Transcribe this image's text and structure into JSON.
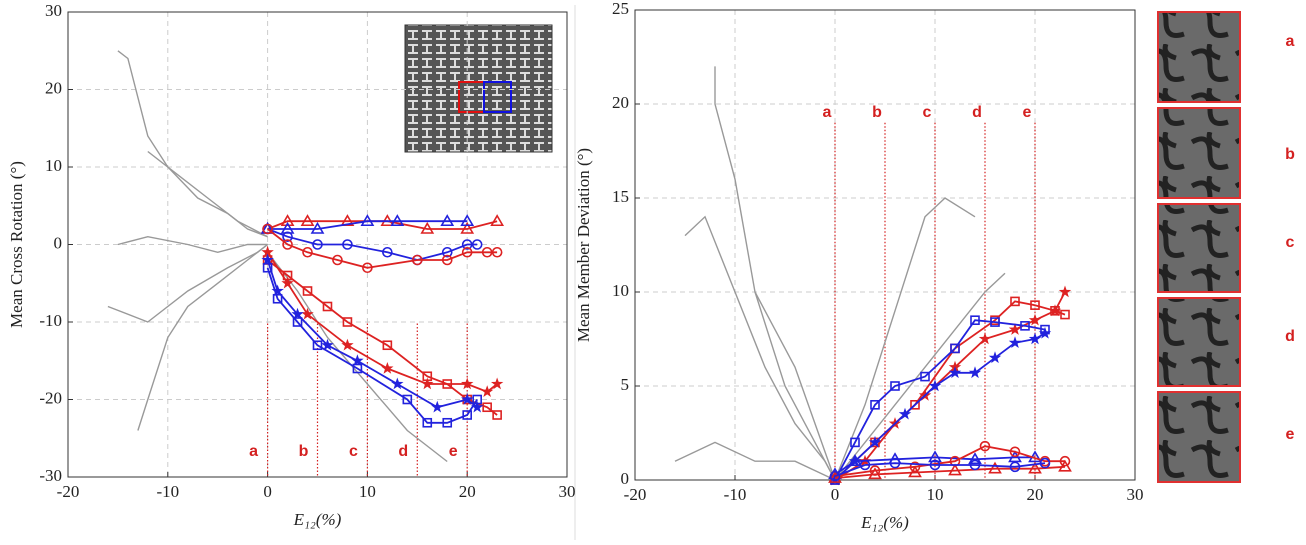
{
  "chart_data": [
    {
      "type": "line",
      "xlabel": "E₁₂(%)",
      "ylabel": "Mean Cross Rotation (°)",
      "xlim": [
        -20,
        30
      ],
      "ylim": [
        -30,
        30
      ],
      "xticks": [
        -20,
        -10,
        0,
        10,
        20,
        30
      ],
      "yticks": [
        -30,
        -20,
        -10,
        0,
        10,
        20,
        30
      ],
      "grid": true,
      "annotations": [
        {
          "label": "a",
          "x": 0
        },
        {
          "label": "b",
          "x": 5
        },
        {
          "label": "c",
          "x": 10
        },
        {
          "label": "d",
          "x": 15
        },
        {
          "label": "e",
          "x": 20
        }
      ],
      "series": [
        {
          "color": "#999999",
          "marker": "none",
          "x": [
            -15,
            -14,
            -12,
            -10,
            -7,
            -4,
            -2,
            0
          ],
          "values": [
            25,
            24,
            14,
            10,
            6,
            4,
            2,
            1
          ]
        },
        {
          "color": "#999999",
          "marker": "none",
          "x": [
            -13,
            -12,
            -10,
            -8,
            -5,
            -2,
            0
          ],
          "values": [
            -24,
            -20,
            -12,
            -8,
            -5,
            -2,
            0
          ]
        },
        {
          "color": "#999999",
          "marker": "none",
          "x": [
            -15,
            -12,
            -8,
            -5,
            -2,
            0
          ],
          "values": [
            0,
            1,
            0,
            -1,
            0,
            0
          ]
        },
        {
          "color": "#999999",
          "marker": "none",
          "x": [
            -16,
            -12,
            -8,
            -4,
            -1,
            0
          ],
          "values": [
            -8,
            -10,
            -6,
            -3,
            -1,
            0
          ]
        },
        {
          "color": "#999999",
          "marker": "none",
          "x": [
            0,
            3,
            6,
            10,
            14,
            18
          ],
          "values": [
            -1,
            -6,
            -12,
            -18,
            -24,
            -28
          ]
        },
        {
          "color": "#999999",
          "marker": "none",
          "x": [
            -12,
            -9,
            -6,
            -3,
            0
          ],
          "values": [
            12,
            9,
            6,
            3,
            1
          ]
        },
        {
          "color": "#dd2222",
          "marker": "triangle",
          "x": [
            0,
            2,
            4,
            8,
            12,
            16,
            20,
            23
          ],
          "values": [
            2,
            3,
            3,
            3,
            3,
            2,
            2,
            3
          ]
        },
        {
          "color": "#2222dd",
          "marker": "triangle",
          "x": [
            0,
            2,
            5,
            10,
            13,
            18,
            20
          ],
          "values": [
            2,
            2,
            2,
            3,
            3,
            3,
            3
          ]
        },
        {
          "color": "#2222dd",
          "marker": "circle",
          "x": [
            0,
            2,
            5,
            8,
            12,
            15,
            18,
            20,
            21
          ],
          "values": [
            2,
            1,
            0,
            0,
            -1,
            -2,
            -1,
            0,
            0
          ]
        },
        {
          "color": "#dd2222",
          "marker": "circle",
          "x": [
            0,
            2,
            4,
            7,
            10,
            15,
            18,
            20,
            22,
            23
          ],
          "values": [
            2,
            0,
            -1,
            -2,
            -3,
            -2,
            -2,
            -1,
            -1,
            -1
          ]
        },
        {
          "color": "#dd2222",
          "marker": "square",
          "x": [
            0,
            2,
            4,
            6,
            8,
            12,
            16,
            18,
            20,
            22,
            23
          ],
          "values": [
            -2,
            -4,
            -6,
            -8,
            -10,
            -13,
            -17,
            -18,
            -20,
            -21,
            -22
          ]
        },
        {
          "color": "#dd2222",
          "marker": "star",
          "x": [
            0,
            2,
            4,
            8,
            12,
            16,
            20,
            22,
            23
          ],
          "values": [
            -1,
            -5,
            -9,
            -13,
            -16,
            -18,
            -18,
            -19,
            -18
          ]
        },
        {
          "color": "#2222dd",
          "marker": "star",
          "x": [
            0,
            1,
            3,
            6,
            9,
            13,
            17,
            20,
            21
          ],
          "values": [
            -2,
            -6,
            -9,
            -13,
            -15,
            -18,
            -21,
            -20,
            -21
          ]
        },
        {
          "color": "#2222dd",
          "marker": "square",
          "x": [
            0,
            1,
            3,
            5,
            9,
            14,
            16,
            18,
            20,
            21
          ],
          "values": [
            -3,
            -7,
            -10,
            -13,
            -16,
            -20,
            -23,
            -23,
            -22,
            -20
          ]
        }
      ]
    },
    {
      "type": "line",
      "xlabel": "E₁₂(%)",
      "ylabel": "Mean Member Deviation (°)",
      "xlim": [
        -20,
        30
      ],
      "ylim": [
        0,
        25
      ],
      "xticks": [
        -20,
        -10,
        0,
        10,
        20,
        30
      ],
      "yticks": [
        0,
        5,
        10,
        15,
        20,
        25
      ],
      "grid": true,
      "annotations": [
        {
          "label": "a",
          "x": 0
        },
        {
          "label": "b",
          "x": 5
        },
        {
          "label": "c",
          "x": 10
        },
        {
          "label": "d",
          "x": 15
        },
        {
          "label": "e",
          "x": 20
        }
      ],
      "series": [
        {
          "color": "#999999",
          "marker": "none",
          "x": [
            -12,
            -12,
            -10,
            -8,
            -5,
            -2,
            0
          ],
          "values": [
            22,
            20,
            16,
            10,
            5,
            2,
            0
          ]
        },
        {
          "color": "#999999",
          "marker": "none",
          "x": [
            -15,
            -13,
            -10,
            -7,
            -4,
            -1,
            0
          ],
          "values": [
            13,
            14,
            10,
            6,
            3,
            1,
            0
          ]
        },
        {
          "color": "#999999",
          "marker": "none",
          "x": [
            0,
            3,
            6,
            9,
            11,
            14
          ],
          "values": [
            0,
            4,
            9,
            14,
            15,
            14
          ]
        },
        {
          "color": "#999999",
          "marker": "none",
          "x": [
            0,
            3,
            6,
            9,
            12,
            15,
            17
          ],
          "values": [
            0,
            2,
            4,
            6,
            8,
            10,
            11
          ]
        },
        {
          "color": "#999999",
          "marker": "none",
          "x": [
            -16,
            -12,
            -8,
            -4,
            0
          ],
          "values": [
            1,
            2,
            1,
            1,
            0
          ]
        },
        {
          "color": "#999999",
          "marker": "none",
          "x": [
            -8,
            -6,
            -4,
            -2,
            0
          ],
          "values": [
            10,
            8,
            6,
            3,
            0
          ]
        },
        {
          "color": "#dd2222",
          "marker": "star",
          "x": [
            0,
            3,
            6,
            9,
            12,
            15,
            18,
            20,
            22,
            23
          ],
          "values": [
            0,
            1,
            3,
            4.5,
            6,
            7.5,
            8,
            8.5,
            9,
            10
          ]
        },
        {
          "color": "#dd2222",
          "marker": "square",
          "x": [
            0,
            4,
            8,
            12,
            16,
            18,
            20,
            22,
            23
          ],
          "values": [
            0,
            2,
            4,
            7,
            8.5,
            9.5,
            9.3,
            9,
            8.8
          ]
        },
        {
          "color": "#2222dd",
          "marker": "square",
          "x": [
            0,
            2,
            4,
            6,
            9,
            12,
            14,
            16,
            19,
            21
          ],
          "values": [
            0,
            2,
            4,
            5,
            5.5,
            7,
            8.5,
            8.4,
            8.2,
            8
          ]
        },
        {
          "color": "#2222dd",
          "marker": "star",
          "x": [
            0,
            2,
            4,
            7,
            10,
            12,
            14,
            16,
            18,
            20,
            21
          ],
          "values": [
            0,
            1,
            2,
            3.5,
            5,
            5.7,
            5.7,
            6.5,
            7.3,
            7.5,
            7.8
          ]
        },
        {
          "color": "#2222dd",
          "marker": "triangle",
          "x": [
            0,
            2,
            6,
            10,
            14,
            18,
            20
          ],
          "values": [
            0.3,
            1,
            1.1,
            1.2,
            1.1,
            1.2,
            1.2
          ]
        },
        {
          "color": "#dd2222",
          "marker": "circle",
          "x": [
            0,
            4,
            8,
            12,
            15,
            18,
            21,
            23
          ],
          "values": [
            0.2,
            0.5,
            0.7,
            1,
            1.8,
            1.5,
            1,
            1
          ]
        },
        {
          "color": "#dd2222",
          "marker": "triangle",
          "x": [
            0,
            4,
            8,
            12,
            16,
            20,
            23
          ],
          "values": [
            0.1,
            0.3,
            0.4,
            0.5,
            0.6,
            0.6,
            0.7
          ]
        },
        {
          "color": "#2222dd",
          "marker": "circle",
          "x": [
            0,
            3,
            6,
            10,
            14,
            18,
            21
          ],
          "values": [
            0.2,
            0.8,
            0.9,
            0.8,
            0.8,
            0.7,
            0.9
          ]
        }
      ]
    }
  ],
  "panels": {
    "labels": [
      "a",
      "b",
      "c",
      "d",
      "e"
    ]
  }
}
